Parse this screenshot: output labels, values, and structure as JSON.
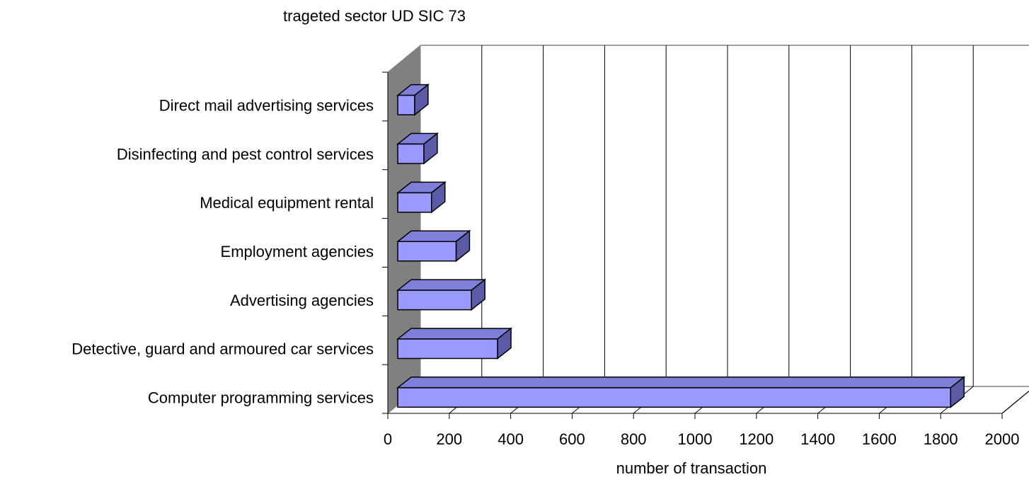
{
  "chart_data": {
    "type": "bar",
    "orientation": "horizontal",
    "style": "3d",
    "title": "trageted sector UD SIC 73",
    "xlabel": "number of transaction",
    "ylabel": "",
    "xlim": [
      0,
      2000
    ],
    "x_ticks": [
      "0",
      "200",
      "400",
      "600",
      "800",
      "1000",
      "1200",
      "1400",
      "1600",
      "1800",
      "2000"
    ],
    "categories": [
      "Computer programming services",
      "Detective, guard and armoured car services",
      "Advertising agencies",
      "Employment agencies",
      "Medical equipment rental",
      "Disinfecting and pest control services",
      "Direct mail advertising services"
    ],
    "values": [
      1800,
      325,
      240,
      190,
      110,
      85,
      55
    ],
    "grid": true,
    "legend": "none",
    "colors": {
      "bar_front": "#9999ff",
      "bar_top": "#7f7fd9",
      "bar_side": "#5a5aa6",
      "back_wall": "#ffffff",
      "side_wall": "#808080",
      "gridline": "#000000"
    }
  }
}
